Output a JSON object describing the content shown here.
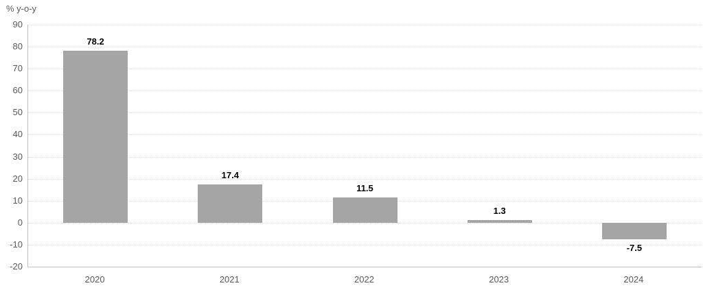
{
  "chart_data": {
    "type": "bar",
    "title": "",
    "xlabel": "",
    "ylabel": "% y-o-y",
    "categories": [
      "2020",
      "2021",
      "2022",
      "2023",
      "2024"
    ],
    "values": [
      78.2,
      17.4,
      11.5,
      1.3,
      -7.5
    ],
    "value_labels": [
      "78.2",
      "17.4",
      "11.5",
      "1.3",
      "-7.5"
    ],
    "ylim": [
      -20,
      90
    ],
    "y_ticks": [
      90,
      80,
      70,
      60,
      50,
      40,
      30,
      20,
      10,
      0,
      -10,
      -20
    ],
    "grid": "horizontal-dotted",
    "legend": "none",
    "colors": {
      "bar": "#a5a5a5",
      "value_label": "#000000",
      "axis_text": "#595959",
      "gridline": "#d9d9d9",
      "axis_line": "#bfbfbf",
      "background": "#ffffff"
    }
  }
}
